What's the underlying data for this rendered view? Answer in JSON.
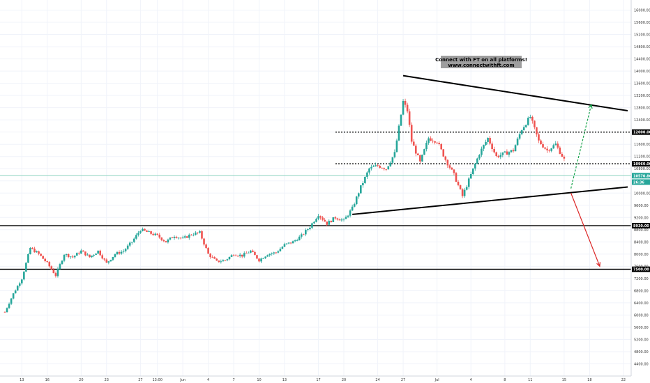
{
  "chart_data": {
    "type": "candlestick",
    "title": "",
    "xlabel": "",
    "ylabel": "",
    "ylim": [
      4000,
      16400
    ],
    "x_range_days": [
      0,
      108
    ],
    "price_ticks": [
      4400,
      4800,
      5200,
      5600,
      6000,
      6400,
      6800,
      7200,
      7600,
      8000,
      8400,
      8800,
      9200,
      9600,
      10000,
      10400,
      10800,
      11200,
      11600,
      12000,
      12400,
      12800,
      13200,
      13600,
      14000,
      14400,
      14800,
      15200,
      15600,
      16000
    ],
    "time_ticks": [
      {
        "label": "13",
        "day": 2
      },
      {
        "label": "16",
        "day": 5
      },
      {
        "label": "20",
        "day": 9
      },
      {
        "label": "23",
        "day": 12
      },
      {
        "label": "27",
        "day": 16
      },
      {
        "label": "13:00",
        "day": 18
      },
      {
        "label": "Jun",
        "day": 21
      },
      {
        "label": "4",
        "day": 24
      },
      {
        "label": "7",
        "day": 27
      },
      {
        "label": "10",
        "day": 30
      },
      {
        "label": "13",
        "day": 33
      },
      {
        "label": "17",
        "day": 37
      },
      {
        "label": "20",
        "day": 40
      },
      {
        "label": "24",
        "day": 44
      },
      {
        "label": "27",
        "day": 47
      },
      {
        "label": "Jul",
        "day": 51
      },
      {
        "label": "4",
        "day": 55
      },
      {
        "label": "8",
        "day": 59
      },
      {
        "label": "11",
        "day": 62
      },
      {
        "label": "15",
        "day": 66
      },
      {
        "label": "18",
        "day": 69
      },
      {
        "label": "22",
        "day": 73
      }
    ],
    "last_day": 66,
    "price_path": [
      [
        0,
        6100
      ],
      [
        1,
        6700
      ],
      [
        2,
        7200
      ],
      [
        3,
        8200
      ],
      [
        4,
        8000
      ],
      [
        5,
        7700
      ],
      [
        6,
        7300
      ],
      [
        7,
        8000
      ],
      [
        8,
        7900
      ],
      [
        9,
        8100
      ],
      [
        10,
        7900
      ],
      [
        11,
        8100
      ],
      [
        12,
        7700
      ],
      [
        13,
        8000
      ],
      [
        14,
        8100
      ],
      [
        15,
        8400
      ],
      [
        16,
        8800
      ],
      [
        17,
        8700
      ],
      [
        18,
        8600
      ],
      [
        19,
        8400
      ],
      [
        20,
        8600
      ],
      [
        21,
        8500
      ],
      [
        22,
        8650
      ],
      [
        23,
        8700
      ],
      [
        24,
        8000
      ],
      [
        25,
        7750
      ],
      [
        26,
        7800
      ],
      [
        27,
        8000
      ],
      [
        28,
        7950
      ],
      [
        29,
        8100
      ],
      [
        30,
        7800
      ],
      [
        31,
        8000
      ],
      [
        32,
        8050
      ],
      [
        33,
        8300
      ],
      [
        34,
        8400
      ],
      [
        35,
        8600
      ],
      [
        36,
        8900
      ],
      [
        37,
        9300
      ],
      [
        38,
        9000
      ],
      [
        39,
        9200
      ],
      [
        40,
        9100
      ],
      [
        41,
        9500
      ],
      [
        42,
        10200
      ],
      [
        43,
        10800
      ],
      [
        44,
        10900
      ],
      [
        45,
        10800
      ],
      [
        46,
        11300
      ],
      [
        47,
        13000
      ],
      [
        47.5,
        12700
      ],
      [
        48,
        11700
      ],
      [
        49,
        11000
      ],
      [
        50,
        11800
      ],
      [
        51,
        11700
      ],
      [
        52,
        11100
      ],
      [
        53,
        10600
      ],
      [
        54,
        9900
      ],
      [
        55,
        10600
      ],
      [
        56,
        11300
      ],
      [
        57,
        11800
      ],
      [
        58,
        11200
      ],
      [
        59,
        11300
      ],
      [
        60,
        11400
      ],
      [
        61,
        12100
      ],
      [
        62,
        12500
      ],
      [
        63,
        11700
      ],
      [
        64,
        11400
      ],
      [
        65,
        11600
      ],
      [
        66,
        11100
      ],
      [
        67,
        10500
      ],
      [
        68,
        10300
      ]
    ],
    "trendlines": [
      {
        "name": "upper",
        "from": [
          47,
          13850
        ],
        "to": [
          73.5,
          12700
        ],
        "color": "#000000"
      },
      {
        "name": "lower",
        "from": [
          41,
          9300
        ],
        "to": [
          73.5,
          10200
        ],
        "color": "#000000"
      }
    ],
    "levels": [
      {
        "label": "12000.00",
        "price": 12000,
        "style": "dotted",
        "color": "#000000"
      },
      {
        "label": "10960.00",
        "price": 10960,
        "style": "dotted",
        "color": "#000000"
      },
      {
        "label": "8930.00",
        "price": 8930,
        "style": "solid",
        "color": "#000000"
      },
      {
        "label": "7500.00",
        "price": 7500,
        "style": "solid",
        "color": "#000000"
      }
    ],
    "arrows": [
      {
        "name": "bullish",
        "from": [
          66.8,
          10150
        ],
        "to": [
          69.2,
          12900
        ],
        "color": "#16a34a"
      },
      {
        "name": "bearish",
        "from": [
          66.8,
          10000
        ],
        "to": [
          70.2,
          7600
        ],
        "color": "#dc2626"
      }
    ],
    "current_price": {
      "label": "10570.86",
      "price": 10570.86,
      "line_color": "#8fd3c0"
    },
    "secondary_tag": {
      "label": "26:36",
      "price": 10360
    },
    "annotation": {
      "line1": "Connect with FT on all platforms!",
      "line2": "www.connectwithft.com"
    },
    "colors": {
      "up": "#26a69a",
      "down": "#ef5350",
      "grid": "#f0f3fa",
      "tag_bg": "#000000",
      "accent": "#26a69a"
    }
  }
}
